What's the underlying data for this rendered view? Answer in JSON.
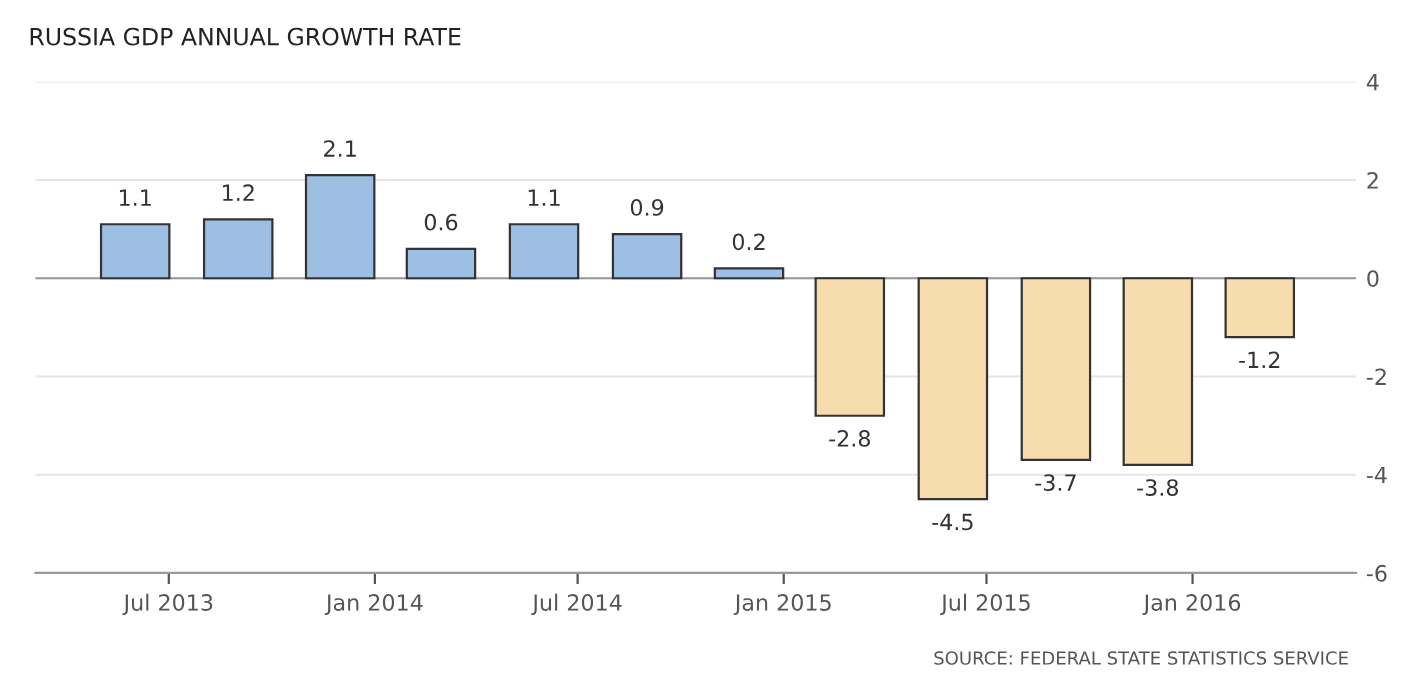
{
  "chart_data": {
    "type": "bar",
    "title": "RUSSIA GDP ANNUAL GROWTH RATE",
    "x": [
      "2013-06-01",
      "2013-09-01",
      "2013-12-01",
      "2014-03-01",
      "2014-06-01",
      "2014-09-01",
      "2014-12-01",
      "2015-03-01",
      "2015-06-01",
      "2015-09-01",
      "2015-12-01",
      "2016-03-01"
    ],
    "values": [
      1.1,
      1.2,
      2.1,
      0.6,
      1.1,
      0.9,
      0.2,
      -2.8,
      -4.5,
      -3.7,
      -3.8,
      -1.2
    ],
    "colors": [
      "#9dbfe3",
      "#9dbfe3",
      "#9dbfe3",
      "#9dbfe3",
      "#9dbfe3",
      "#9dbfe3",
      "#9dbfe3",
      "#f7dcae",
      "#f7dcae",
      "#f7dcae",
      "#f7dcae",
      "#f7dcae"
    ],
    "data_labels": true,
    "xlim": [
      "2013-03-04",
      "2016-05-26"
    ],
    "xticks": [
      {
        "value": "2013-07-01",
        "label": "Jul 2013"
      },
      {
        "value": "2014-01-01",
        "label": "Jan 2014"
      },
      {
        "value": "2014-07-01",
        "label": "Jul 2014"
      },
      {
        "value": "2015-01-01",
        "label": "Jan 2015"
      },
      {
        "value": "2015-07-01",
        "label": "Jul 2015"
      },
      {
        "value": "2016-01-01",
        "label": "Jan 2016"
      }
    ],
    "ylim": [
      -6,
      4
    ],
    "yticks": [
      -6,
      -4,
      -2,
      0,
      2,
      4
    ],
    "grid": "y",
    "annotations": [
      "SOURCE: FEDERAL STATE STATISTICS SERVICE"
    ]
  }
}
